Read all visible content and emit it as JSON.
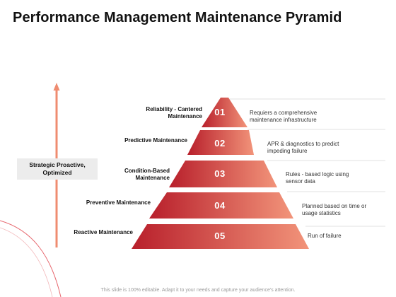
{
  "title": "Performance Management Maintenance Pyramid",
  "side_label": "Strategic Proactive, Optimized",
  "levels": [
    {
      "number": "01",
      "name": "Reliability - Cantered Maintenance",
      "description": "Requiers a comprehensive maintenance infrastructure"
    },
    {
      "number": "02",
      "name": "Predictive Maintenance",
      "description": "APR & diagnostics to predict impeding failure"
    },
    {
      "number": "03",
      "name": "Condition-Based Maintenance",
      "description": "Rules - based logic using sensor data"
    },
    {
      "number": "04",
      "name": "Preventive Maintenance",
      "description": "Planned based on time or usage statistics"
    },
    {
      "number": "05",
      "name": "Reactive Maintenance",
      "description": "Run of failure"
    }
  ],
  "footer": "This slide is 100% editable. Adapt it to your needs and capture your audience's attention.",
  "colors": {
    "gradient_dark": "#b81f2b",
    "gradient_light": "#f2947a",
    "arrow": "#ef8c70",
    "side_box_bg": "#ececec"
  }
}
